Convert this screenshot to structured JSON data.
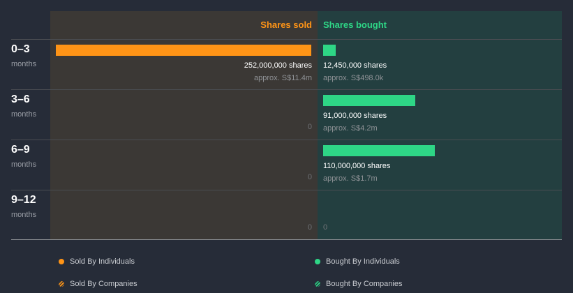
{
  "chart_data": {
    "type": "bar",
    "columns": {
      "sold": "Shares sold",
      "bought": "Shares bought"
    },
    "colors": {
      "sold": "#ff9416",
      "bought": "#2ed686"
    },
    "rows": [
      {
        "label": "0–3",
        "sub": "months",
        "sold": 252000000,
        "sold_text": "252,000,000 shares",
        "sold_approx": "approx. S$11.4m",
        "bought": 12450000,
        "bought_text": "12,450,000 shares",
        "bought_approx": "approx. S$498.0k"
      },
      {
        "label": "3–6",
        "sub": "months",
        "sold": 0,
        "sold_text": "0",
        "sold_approx": "",
        "bought": 91000000,
        "bought_text": "91,000,000 shares",
        "bought_approx": "approx. S$4.2m"
      },
      {
        "label": "6–9",
        "sub": "months",
        "sold": 0,
        "sold_text": "0",
        "sold_approx": "",
        "bought": 110000000,
        "bought_text": "110,000,000 shares",
        "bought_approx": "approx. S$1.7m"
      },
      {
        "label": "9–12",
        "sub": "months",
        "sold": 0,
        "sold_text": "0",
        "sold_approx": "",
        "bought": 0,
        "bought_text": "0",
        "bought_approx": ""
      }
    ],
    "max": 252000000,
    "legend": [
      "Sold By Individuals",
      "Bought By Individuals",
      "Sold By Companies",
      "Bought By Companies"
    ]
  }
}
